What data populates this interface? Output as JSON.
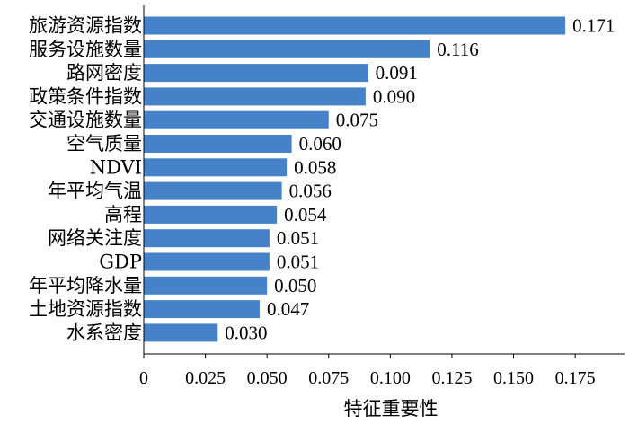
{
  "chart_data": {
    "type": "bar",
    "orientation": "horizontal",
    "categories": [
      "旅游资源指数",
      "服务设施数量",
      "路网密度",
      "政策条件指数",
      "交通设施数量",
      "空气质量",
      "NDVI",
      "年平均气温",
      "高程",
      "网络关注度",
      "GDP",
      "年平均降水量",
      "土地资源指数",
      "水系密度"
    ],
    "values": [
      0.171,
      0.116,
      0.091,
      0.09,
      0.075,
      0.06,
      0.058,
      0.056,
      0.054,
      0.051,
      0.051,
      0.05,
      0.047,
      0.03
    ],
    "value_labels": [
      "0.171",
      "0.116",
      "0.091",
      "0.090",
      "0.075",
      "0.060",
      "0.058",
      "0.056",
      "0.054",
      "0.051",
      "0.051",
      "0.050",
      "0.047",
      "0.030"
    ],
    "title": "",
    "xlabel": "特征重要性",
    "ylabel": "",
    "xlim": [
      0,
      0.195
    ],
    "xticks": [
      0,
      0.025,
      0.05,
      0.075,
      0.1,
      0.125,
      0.15,
      0.175
    ],
    "xtick_labels": [
      "0",
      "0.025",
      "0.050",
      "0.075",
      "0.100",
      "0.125",
      "0.150",
      "0.175"
    ],
    "grid": false,
    "legend": "none",
    "bar_color": "#4682c8"
  }
}
